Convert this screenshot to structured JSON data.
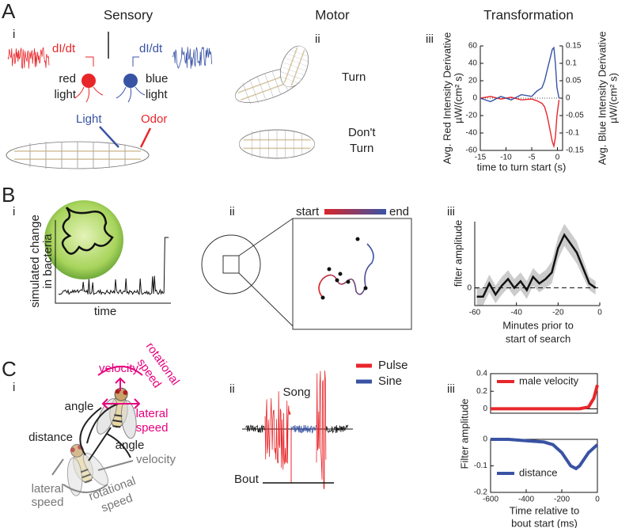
{
  "panels": {
    "A": {
      "letter": "A",
      "i": {
        "roman": "i",
        "title": "Sensory",
        "red_signal": "dI/dt",
        "blue_signal": "dI/dt",
        "red_light": [
          "red",
          "light"
        ],
        "blue_light": [
          "blue",
          "light"
        ],
        "light": "Light",
        "odor": "Odor"
      },
      "ii": {
        "roman": "ii",
        "title": "Motor",
        "turn": "Turn",
        "dont_turn": [
          "Don't",
          "Turn"
        ]
      },
      "iii": {
        "roman": "iii",
        "title": "Transformation",
        "xlabel": "time to turn start (s)",
        "ylabel": [
          "Avg. Red Intensity Derivative",
          "µW/(cm² s)"
        ],
        "y2label": [
          "Avg. Blue Intensity Derivative",
          "µW/(cm² s)"
        ],
        "xlim": [
          -15,
          1
        ],
        "xticks": [
          -15,
          -10,
          -5,
          0
        ],
        "ylim": [
          -60,
          60
        ],
        "yticks": [
          -60,
          -40,
          -20,
          0,
          20,
          40,
          60
        ],
        "y2lim": [
          -0.15,
          0.15
        ],
        "y2ticks": [
          -0.15,
          -0.1,
          -0.05,
          0,
          0.05,
          0.1,
          0.15
        ],
        "x": [
          -15,
          -13,
          -11,
          -9,
          -7,
          -5,
          -4,
          -3,
          -2.5,
          -2,
          -1.5,
          -1,
          -0.7,
          -0.4,
          -0.1,
          0.3
        ],
        "series": [
          {
            "color": "#e8262a",
            "axis": "y",
            "values": [
              0,
              2,
              -1,
              1,
              -2,
              -1,
              -3,
              -6,
              -10,
              -20,
              -35,
              -50,
              -55,
              -45,
              -20,
              -2
            ]
          },
          {
            "color": "#3953a4",
            "axis": "y2",
            "values": [
              0,
              -0.01,
              0.005,
              -0.005,
              0.01,
              0.005,
              0.02,
              0.03,
              0.05,
              0.08,
              0.11,
              0.14,
              0.145,
              0.1,
              0.03,
              0
            ]
          }
        ]
      }
    },
    "B": {
      "letter": "B",
      "i": {
        "roman": "i",
        "ylabel": [
          "simulated change",
          "in bacteria"
        ],
        "xlabel": "time"
      },
      "ii": {
        "roman": "ii",
        "start": "start",
        "end": "end"
      },
      "iii": {
        "roman": "iii",
        "ylabel": "filter amplitude",
        "xlabel": [
          "Minutes prior to",
          "start of search"
        ],
        "xlim": [
          -60,
          0
        ],
        "xticks": [
          -60,
          -40,
          -20,
          0
        ],
        "ylim": [
          -0.4,
          1.5
        ],
        "yticks": [
          0
        ],
        "x": [
          -59,
          -56,
          -53,
          -50,
          -47,
          -44,
          -41,
          -38,
          -35,
          -32,
          -29,
          -26,
          -23,
          -20,
          -17,
          -14,
          -11,
          -8,
          -5,
          -2
        ],
        "values": [
          -0.2,
          -0.2,
          0.1,
          -0.15,
          0.05,
          0.2,
          0,
          0.15,
          -0.05,
          0.25,
          0.1,
          0.2,
          0.35,
          0.9,
          1.2,
          1,
          0.8,
          0.45,
          0.1,
          0
        ],
        "error": [
          0.2,
          0.2,
          0.2,
          0.2,
          0.2,
          0.2,
          0.2,
          0.2,
          0.2,
          0.2,
          0.2,
          0.2,
          0.25,
          0.25,
          0.25,
          0.25,
          0.25,
          0.2,
          0.15,
          0.15
        ]
      }
    },
    "C": {
      "letter": "C",
      "i": {
        "roman": "i",
        "velocity_m": "velocity",
        "rotational_speed_m": [
          "rotational",
          "speed"
        ],
        "angle_1": "angle",
        "lateral_speed_m": [
          "lateral",
          "speed"
        ],
        "distance": "distance",
        "angle_2": "angle",
        "velocity_g": "velocity",
        "lateral_speed_g": [
          "lateral",
          "speed"
        ],
        "rotational_speed_g": [
          "rotational",
          "speed"
        ]
      },
      "ii": {
        "roman": "ii",
        "title": "Song",
        "legend": [
          {
            "name": "Pulse",
            "color": "#e8262a"
          },
          {
            "name": "Sine",
            "color": "#3953a4"
          }
        ],
        "bout": "Bout"
      },
      "iii": {
        "roman": "iii",
        "ylabel": "Filter amplitude",
        "xlabel": [
          "Time relative to",
          "bout start (ms)"
        ],
        "xlim": [
          -600,
          0
        ],
        "xticks": [
          -600,
          -400,
          -200,
          0
        ],
        "top": {
          "ylim": [
            -0.05,
            0.4
          ],
          "yticks": [
            0,
            0.2,
            0.4
          ],
          "name": "male velocity",
          "color": "#e8262a",
          "x": [
            -600,
            -500,
            -400,
            -300,
            -200,
            -100,
            -50,
            -20,
            0
          ],
          "values": [
            0,
            0,
            0,
            0,
            0,
            0,
            0.02,
            0.12,
            0.27
          ]
        },
        "bottom": {
          "ylim": [
            -0.2,
            0
          ],
          "yticks": [
            -0.2,
            -0.1,
            0
          ],
          "name": "distance",
          "color": "#3953a4",
          "x": [
            -600,
            -500,
            -400,
            -300,
            -250,
            -200,
            -150,
            -120,
            -100,
            -50,
            0
          ],
          "values": [
            0,
            0,
            -0.005,
            -0.01,
            -0.02,
            -0.05,
            -0.1,
            -0.11,
            -0.1,
            -0.05,
            -0.02
          ]
        }
      }
    }
  }
}
